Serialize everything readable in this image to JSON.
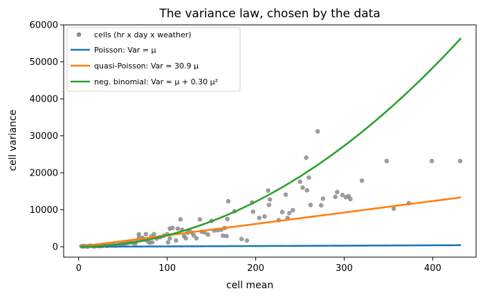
{
  "chart_data": {
    "type": "scatter",
    "title": "The variance law, chosen by the data",
    "xlabel": "cell mean",
    "ylabel": "cell variance",
    "xlim": [
      -17,
      449
    ],
    "ylim": [
      -2800,
      60000
    ],
    "xticks": [
      0,
      100,
      200,
      300,
      400
    ],
    "yticks": [
      0,
      10000,
      20000,
      30000,
      40000,
      50000,
      60000
    ],
    "legend_position": "top-left",
    "grid": false,
    "series": [
      {
        "name": "cells (hr x day x weather)",
        "kind": "scatter",
        "color": "#8c8c8c",
        "points": [
          [
            3,
            150
          ],
          [
            5,
            80
          ],
          [
            6,
            200
          ],
          [
            8,
            120
          ],
          [
            10,
            50
          ],
          [
            12,
            250
          ],
          [
            14,
            300
          ],
          [
            16,
            180
          ],
          [
            18,
            100
          ],
          [
            20,
            350
          ],
          [
            22,
            200
          ],
          [
            25,
            150
          ],
          [
            28,
            300
          ],
          [
            30,
            400
          ],
          [
            32,
            250
          ],
          [
            35,
            500
          ],
          [
            38,
            450
          ],
          [
            40,
            600
          ],
          [
            42,
            300
          ],
          [
            45,
            700
          ],
          [
            48,
            550
          ],
          [
            50,
            900
          ],
          [
            52,
            800
          ],
          [
            55,
            1000
          ],
          [
            58,
            1200
          ],
          [
            60,
            1400
          ],
          [
            62,
            1000
          ],
          [
            64,
            900
          ],
          [
            66,
            1600
          ],
          [
            68,
            2600
          ],
          [
            68,
            3400
          ],
          [
            70,
            1800
          ],
          [
            72,
            2400
          ],
          [
            74,
            1900
          ],
          [
            76,
            3400
          ],
          [
            78,
            1500
          ],
          [
            80,
            1100
          ],
          [
            82,
            2800
          ],
          [
            83,
            1200
          ],
          [
            85,
            3400
          ],
          [
            88,
            2200
          ],
          [
            92,
            2600
          ],
          [
            96,
            3000
          ],
          [
            100,
            3400
          ],
          [
            101,
            1200
          ],
          [
            103,
            2300
          ],
          [
            103,
            4900
          ],
          [
            106,
            5100
          ],
          [
            110,
            1700
          ],
          [
            112,
            4900
          ],
          [
            115,
            7400
          ],
          [
            117,
            4600
          ],
          [
            119,
            2900
          ],
          [
            121,
            2300
          ],
          [
            123,
            3800
          ],
          [
            125,
            4400
          ],
          [
            128,
            3800
          ],
          [
            130,
            3100
          ],
          [
            133,
            2300
          ],
          [
            137,
            7400
          ],
          [
            139,
            4100
          ],
          [
            142,
            3900
          ],
          [
            146,
            3300
          ],
          [
            150,
            7000
          ],
          [
            153,
            4400
          ],
          [
            157,
            4500
          ],
          [
            161,
            4600
          ],
          [
            163,
            3000
          ],
          [
            165,
            5100
          ],
          [
            167,
            2900
          ],
          [
            168,
            7500
          ],
          [
            169,
            12300
          ],
          [
            176,
            9600
          ],
          [
            184,
            2100
          ],
          [
            190,
            1700
          ],
          [
            196,
            12000
          ],
          [
            197,
            9500
          ],
          [
            204,
            7800
          ],
          [
            210,
            8200
          ],
          [
            214,
            15200
          ],
          [
            215,
            11300
          ],
          [
            216,
            12800
          ],
          [
            226,
            7200
          ],
          [
            230,
            9400
          ],
          [
            234,
            14100
          ],
          [
            236,
            7800
          ],
          [
            238,
            9100
          ],
          [
            242,
            9900
          ],
          [
            250,
            17600
          ],
          [
            253,
            16000
          ],
          [
            257,
            24100
          ],
          [
            258,
            15300
          ],
          [
            260,
            18700
          ],
          [
            262,
            11300
          ],
          [
            270,
            31200
          ],
          [
            274,
            11200
          ],
          [
            276,
            13000
          ],
          [
            290,
            13500
          ],
          [
            292,
            14800
          ],
          [
            298,
            14000
          ],
          [
            302,
            13400
          ],
          [
            305,
            13700
          ],
          [
            307,
            12900
          ],
          [
            320,
            17900
          ],
          [
            348,
            23200
          ],
          [
            356,
            10300
          ],
          [
            373,
            11800
          ],
          [
            399,
            23200
          ],
          [
            431,
            23200
          ]
        ]
      },
      {
        "name": "Poisson: Var = μ",
        "kind": "line",
        "color": "#1f77b4",
        "model": "poisson",
        "phi": 1,
        "x_range": [
          2,
          432
        ]
      },
      {
        "name": "quasi-Poisson: Var = 30.9 μ",
        "kind": "line",
        "color": "#ff7f0e",
        "model": "quasipoisson",
        "phi": 30.9,
        "x_range": [
          2,
          432
        ]
      },
      {
        "name": "neg. binomial: Var = μ + 0.30 μ²",
        "kind": "line",
        "color": "#2ca02c",
        "model": "negbin",
        "alpha": 0.3,
        "x_range": [
          2,
          432
        ]
      }
    ]
  }
}
